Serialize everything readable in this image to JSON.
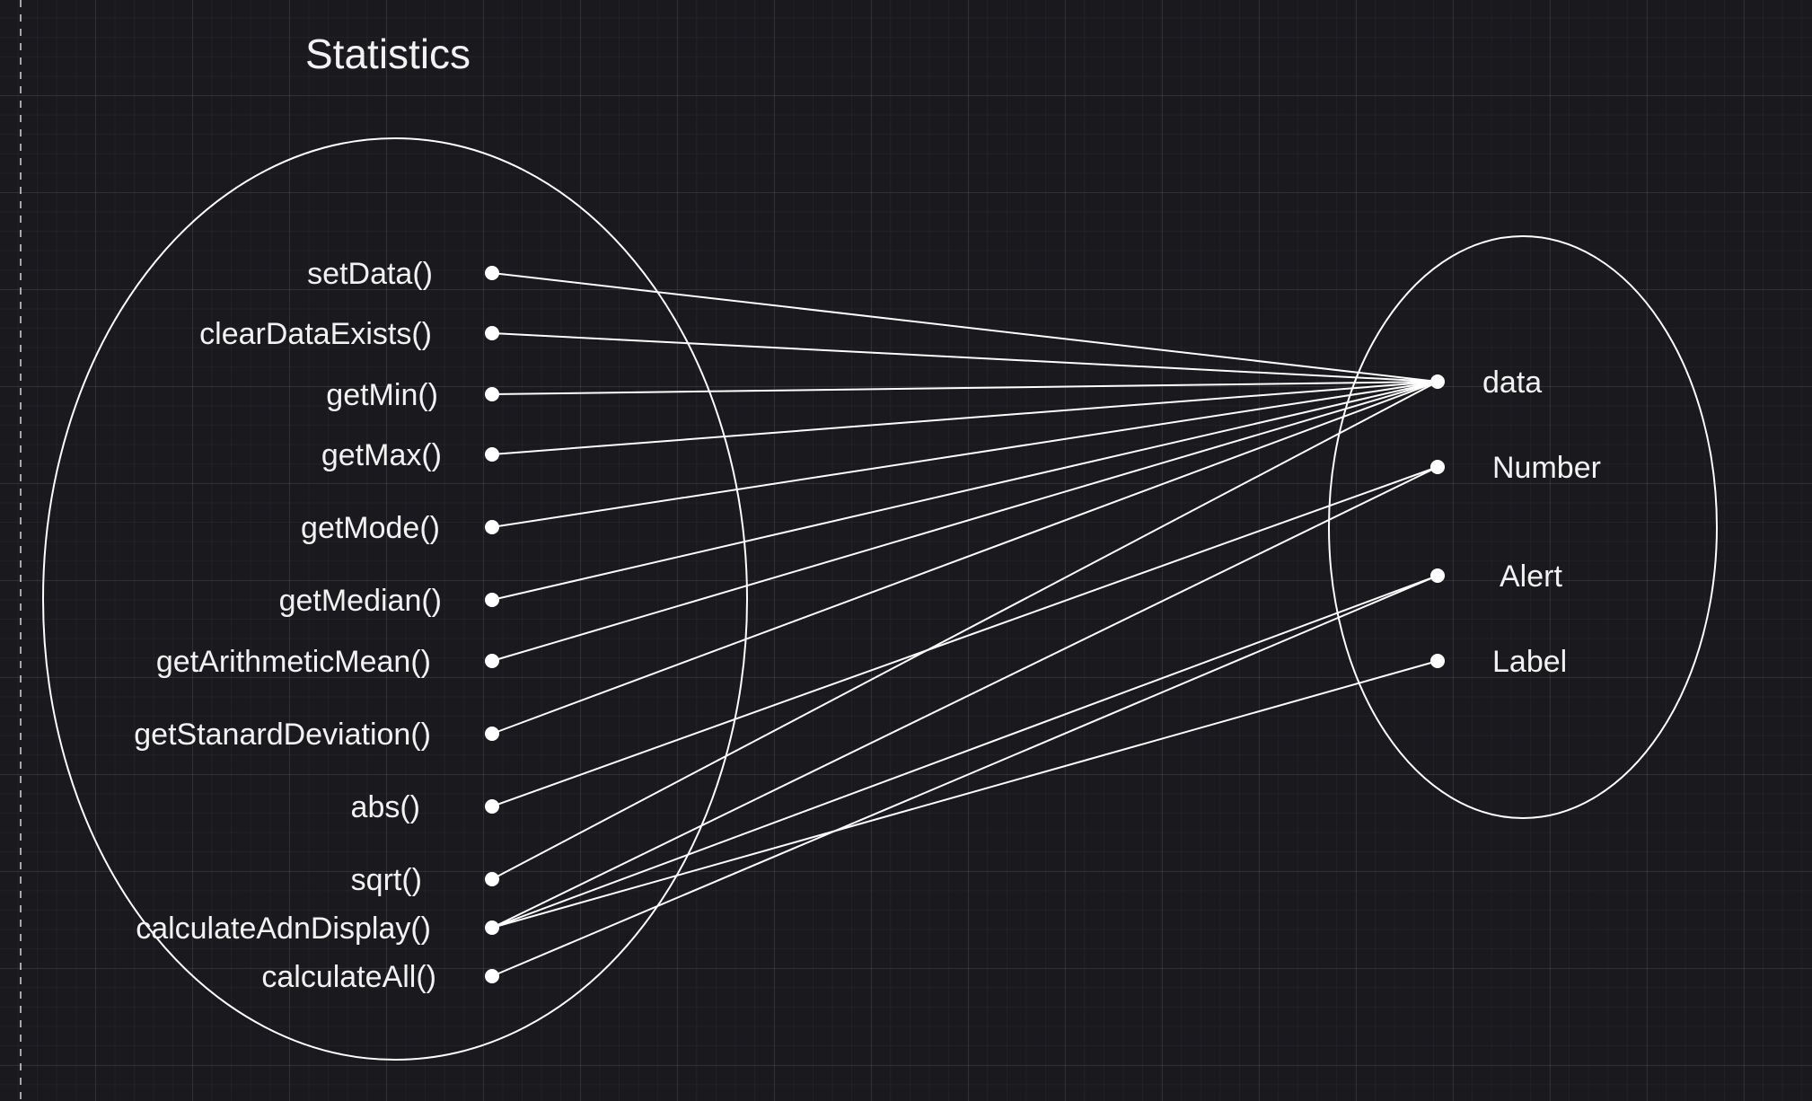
{
  "title": "Statistics",
  "colors": {
    "background": "#1a191e",
    "stroke": "#ffffff",
    "text": "#f2f2f2"
  },
  "methods": [
    "setData()",
    "clearDataExists()",
    "getMin()",
    "getMax()",
    "getMode()",
    "getMedian()",
    "getArithmeticMean()",
    "getStanardDeviation()",
    "abs()",
    "sqrt()",
    "calculateAdnDisplay()",
    "calculateAll()"
  ],
  "members": [
    "data",
    "Number",
    "Alert",
    "Label"
  ],
  "connections": [
    [
      "setData()",
      "data"
    ],
    [
      "clearDataExists()",
      "data"
    ],
    [
      "getMin()",
      "data"
    ],
    [
      "getMax()",
      "data"
    ],
    [
      "getMode()",
      "data"
    ],
    [
      "getMedian()",
      "data"
    ],
    [
      "getArithmeticMean()",
      "data"
    ],
    [
      "getStanardDeviation()",
      "data"
    ],
    [
      "abs()",
      "Number"
    ],
    [
      "sqrt()",
      "data"
    ],
    [
      "calculateAdnDisplay()",
      "Number"
    ],
    [
      "calculateAdnDisplay()",
      "Alert"
    ],
    [
      "calculateAdnDisplay()",
      "Label"
    ],
    [
      "calculateAll()",
      "Alert"
    ]
  ]
}
